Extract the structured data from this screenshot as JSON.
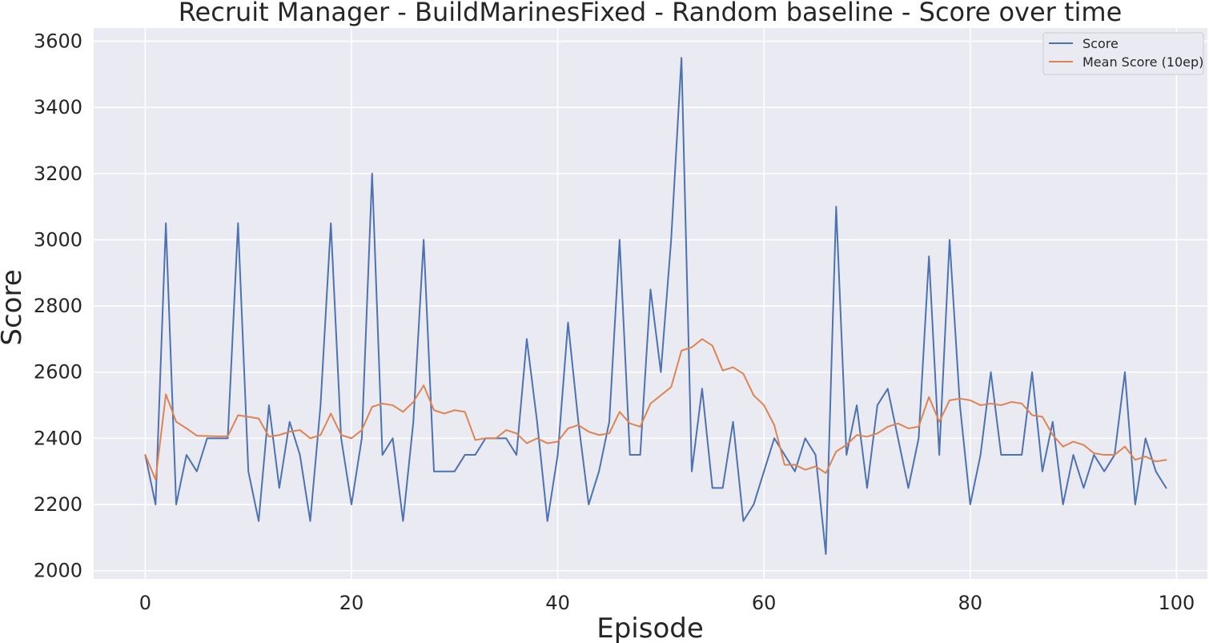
{
  "chart_data": {
    "type": "line",
    "title": "Recruit Manager - BuildMarinesFixed - Random baseline - Score over time",
    "xlabel": "Episode",
    "ylabel": "Score",
    "xlim": [
      -5,
      103
    ],
    "ylim": [
      1975,
      3640
    ],
    "x_ticks": [
      0,
      20,
      40,
      60,
      80,
      100
    ],
    "y_ticks": [
      2000,
      2200,
      2400,
      2600,
      2800,
      3000,
      3200,
      3400,
      3600
    ],
    "grid": true,
    "legend_position": "top-right",
    "series": [
      {
        "name": "Score",
        "color": "#4c72b0",
        "values": [
          2350,
          2200,
          3050,
          2200,
          2350,
          2300,
          2400,
          2400,
          2400,
          3050,
          2300,
          2150,
          2500,
          2250,
          2450,
          2350,
          2150,
          2500,
          3050,
          2400,
          2200,
          2400,
          3200,
          2350,
          2400,
          2150,
          2450,
          3000,
          2300,
          2300,
          2300,
          2350,
          2350,
          2400,
          2400,
          2400,
          2350,
          2700,
          2450,
          2150,
          2350,
          2750,
          2450,
          2200,
          2300,
          2450,
          3000,
          2350,
          2350,
          2850,
          2600,
          3000,
          3550,
          2300,
          2550,
          2250,
          2250,
          2450,
          2150,
          2200,
          2300,
          2400,
          2350,
          2300,
          2400,
          2350,
          2050,
          3100,
          2350,
          2500,
          2250,
          2500,
          2550,
          2400,
          2250,
          2400,
          2950,
          2350,
          3000,
          2500,
          2200,
          2350,
          2600,
          2350,
          2350,
          2350,
          2600,
          2300,
          2450,
          2200,
          2350,
          2250,
          2350,
          2300,
          2350,
          2600,
          2200,
          2400,
          2300,
          2250
        ]
      },
      {
        "name": "Mean Score (10ep)",
        "color": "#dd8452",
        "values": [
          2350,
          2275,
          2533,
          2450,
          2430,
          2408,
          2407,
          2406,
          2406,
          2470,
          2465,
          2460,
          2405,
          2410,
          2420,
          2425,
          2400,
          2410,
          2475,
          2410,
          2400,
          2425,
          2495,
          2505,
          2500,
          2480,
          2510,
          2560,
          2485,
          2475,
          2485,
          2480,
          2395,
          2400,
          2400,
          2425,
          2415,
          2385,
          2400,
          2385,
          2390,
          2430,
          2440,
          2420,
          2410,
          2415,
          2480,
          2445,
          2435,
          2505,
          2530,
          2555,
          2665,
          2675,
          2700,
          2680,
          2605,
          2615,
          2595,
          2530,
          2500,
          2440,
          2320,
          2320,
          2305,
          2315,
          2295,
          2360,
          2380,
          2410,
          2405,
          2415,
          2435,
          2445,
          2430,
          2435,
          2525,
          2450,
          2515,
          2520,
          2515,
          2500,
          2505,
          2500,
          2510,
          2505,
          2470,
          2465,
          2410,
          2375,
          2390,
          2380,
          2355,
          2350,
          2350,
          2375,
          2335,
          2345,
          2330,
          2335
        ]
      }
    ]
  }
}
